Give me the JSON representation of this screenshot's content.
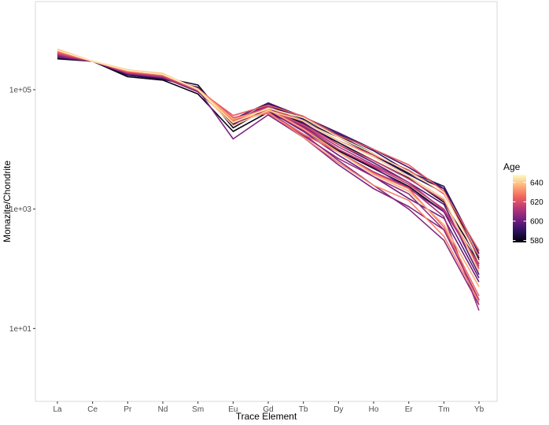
{
  "chart_data": {
    "type": "line",
    "xlabel": "Trace Element",
    "ylabel": "Monazite/Chondrite",
    "y_scale": "log10",
    "ylim": [
      0.6,
      3000000
    ],
    "y_ticks": [
      10,
      1000,
      100000
    ],
    "y_tick_labels": [
      "1e+01",
      "1e+03",
      "1e+05"
    ],
    "categories": [
      "La",
      "Ce",
      "Pr",
      "Nd",
      "Sm",
      "Eu",
      "Gd",
      "Tb",
      "Dy",
      "Ho",
      "Er",
      "Tm",
      "Yb"
    ],
    "grid": false,
    "legend": {
      "title": "Age",
      "position": "right",
      "min": 578,
      "max": 648,
      "ticks": [
        580,
        600,
        620,
        640
      ],
      "palette": [
        "#000004",
        "#2c115f",
        "#721f81",
        "#b73779",
        "#f1605d",
        "#feb078",
        "#fcfdbf"
      ]
    },
    "series": [
      {
        "age": 580,
        "values": [
          330000,
          300000,
          165000,
          145000,
          85000,
          20000,
          42000,
          22000,
          9500,
          4800,
          2400,
          900,
          130
        ]
      },
      {
        "age": 582,
        "values": [
          370000,
          300000,
          190000,
          160000,
          120000,
          23000,
          50000,
          27000,
          13000,
          6500,
          3300,
          1300,
          140
        ]
      },
      {
        "age": 585,
        "values": [
          355000,
          300000,
          175000,
          150000,
          110000,
          26000,
          55000,
          32000,
          17000,
          8500,
          4000,
          2200,
          150
        ]
      },
      {
        "age": 588,
        "values": [
          390000,
          300000,
          200000,
          170000,
          95000,
          30000,
          50000,
          30000,
          16000,
          8000,
          3800,
          1900,
          200
        ]
      },
      {
        "age": 590,
        "values": [
          400000,
          300000,
          190000,
          165000,
          100000,
          28000,
          58000,
          33000,
          18000,
          9500,
          4200,
          2400,
          180
        ]
      },
      {
        "age": 593,
        "values": [
          345000,
          300000,
          180000,
          155000,
          105000,
          32000,
          60000,
          35000,
          19000,
          10000,
          5000,
          2200,
          120
        ]
      },
      {
        "age": 596,
        "values": [
          410000,
          300000,
          195000,
          170000,
          100000,
          30000,
          55000,
          28000,
          12000,
          6000,
          2800,
          1200,
          80
        ]
      },
      {
        "age": 598,
        "values": [
          380000,
          300000,
          190000,
          165000,
          98000,
          30000,
          48000,
          24000,
          10000,
          5000,
          2200,
          900,
          70
        ]
      },
      {
        "age": 600,
        "values": [
          420000,
          300000,
          200000,
          175000,
          95000,
          27000,
          45000,
          20000,
          8000,
          3500,
          1500,
          700,
          60
        ]
      },
      {
        "age": 603,
        "values": [
          395000,
          300000,
          185000,
          160000,
          100000,
          15000,
          38000,
          16000,
          5500,
          2200,
          1100,
          450,
          30
        ]
      },
      {
        "age": 605,
        "values": [
          360000,
          300000,
          190000,
          160000,
          92000,
          29000,
          42000,
          18000,
          6500,
          2500,
          1000,
          300,
          25
        ]
      },
      {
        "age": 608,
        "values": [
          405000,
          300000,
          195000,
          170000,
          96000,
          28000,
          42000,
          17000,
          7000,
          3500,
          1800,
          450,
          30
        ]
      },
      {
        "age": 610,
        "values": [
          430000,
          300000,
          200000,
          175000,
          100000,
          31000,
          46000,
          21000,
          9000,
          4200,
          2300,
          750,
          20
        ]
      },
      {
        "age": 612,
        "values": [
          385000,
          300000,
          190000,
          165000,
          97000,
          32000,
          52000,
          25000,
          11000,
          5500,
          2800,
          950,
          110
        ]
      },
      {
        "age": 615,
        "values": [
          400000,
          300000,
          195000,
          168000,
          100000,
          29000,
          48000,
          23000,
          10000,
          5200,
          2600,
          1000,
          120
        ]
      },
      {
        "age": 618,
        "values": [
          440000,
          300000,
          205000,
          180000,
          105000,
          34000,
          45000,
          26000,
          12000,
          6500,
          3200,
          1400,
          100
        ]
      },
      {
        "age": 621,
        "values": [
          415000,
          300000,
          200000,
          172000,
          98000,
          31000,
          50000,
          30000,
          14000,
          8000,
          4500,
          1800,
          160
        ]
      },
      {
        "age": 623,
        "values": [
          450000,
          300000,
          210000,
          185000,
          100000,
          37000,
          55000,
          36000,
          17000,
          10000,
          5500,
          2000,
          200
        ]
      },
      {
        "age": 626,
        "values": [
          430000,
          300000,
          200000,
          178000,
          103000,
          33000,
          40000,
          18000,
          9000,
          4000,
          2200,
          500,
          35
        ]
      },
      {
        "age": 630,
        "values": [
          470000,
          300000,
          215000,
          180000,
          100000,
          30000,
          42000,
          16000,
          6000,
          2500,
          1400,
          350,
          28
        ]
      },
      {
        "age": 636,
        "values": [
          460000,
          300000,
          210000,
          182000,
          102000,
          32000,
          47000,
          22000,
          9000,
          3800,
          2000,
          550,
          50
        ]
      },
      {
        "age": 640,
        "values": [
          480000,
          300000,
          215000,
          188000,
          100000,
          25000,
          45000,
          30000,
          14000,
          7500,
          3500,
          1500,
          90
        ]
      },
      {
        "age": 645,
        "values": [
          455000,
          300000,
          210000,
          180000,
          102000,
          28000,
          49000,
          34000,
          16000,
          8500,
          4200,
          1900,
          130
        ]
      }
    ]
  }
}
